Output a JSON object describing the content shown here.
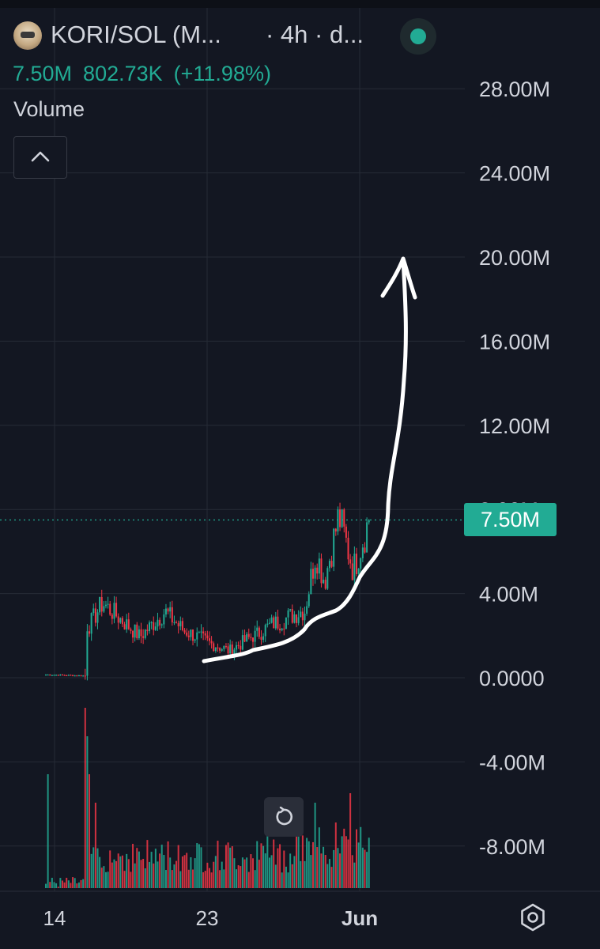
{
  "header": {
    "symbol_title": "KORI/SOL (M...",
    "interval": "· 4h · d...",
    "status_color": "#22ab94"
  },
  "price_line": {
    "last": "7.50M",
    "change": "802.73K",
    "change_pct": "(+11.98%)"
  },
  "indicator": {
    "name": "Volume"
  },
  "last_price_badge": "7.50M",
  "colors": {
    "background": "#131722",
    "up": "#22ab94",
    "down": "#f23645",
    "text": "#d1d4dc",
    "grid": "#262b36"
  },
  "icons": {
    "collapse": "chevron-up-icon",
    "reset": "reset-icon",
    "settings": "settings-icon"
  },
  "chart_data": {
    "type": "candlestick",
    "yaxis_ticks": [
      "28.00M",
      "24.00M",
      "20.00M",
      "16.00M",
      "12.00M",
      "8.00M",
      "4.00M",
      "0.0000",
      "-4.00M",
      "-8.00M"
    ],
    "ylim": [
      -10.4,
      28.8
    ],
    "xaxis_ticks": [
      "14",
      "23",
      "Jun"
    ],
    "grid": true,
    "last_price": 7.5,
    "annotation": "hand-drawn arrow pointing up",
    "price_segments": [
      {
        "from": 0,
        "to": 18,
        "start": 0.15,
        "end": 0.1
      },
      {
        "from": 19,
        "to": 20,
        "start": 0.1,
        "end": 2.5
      },
      {
        "from": 21,
        "to": 27,
        "start": 2.5,
        "end": 3.5
      },
      {
        "from": 28,
        "to": 45,
        "start": 3.5,
        "end": 2.0
      },
      {
        "from": 46,
        "to": 57,
        "start": 2.0,
        "end": 3.1
      },
      {
        "from": 58,
        "to": 67,
        "start": 3.1,
        "end": 2.2
      },
      {
        "from": 68,
        "to": 80,
        "start": 2.2,
        "end": 1.6
      },
      {
        "from": 81,
        "to": 88,
        "start": 1.6,
        "end": 1.3
      },
      {
        "from": 89,
        "to": 100,
        "start": 1.3,
        "end": 2.0
      },
      {
        "from": 101,
        "to": 110,
        "start": 2.0,
        "end": 2.6
      },
      {
        "from": 111,
        "to": 124,
        "start": 2.6,
        "end": 3.2
      },
      {
        "from": 125,
        "to": 130,
        "start": 3.2,
        "end": 5.8
      },
      {
        "from": 131,
        "to": 134,
        "start": 5.8,
        "end": 4.8
      },
      {
        "from": 135,
        "to": 141,
        "start": 4.8,
        "end": 7.5
      },
      {
        "from": 142,
        "to": 148,
        "start": 7.5,
        "end": 5.3
      },
      {
        "from": 149,
        "to": 156,
        "start": 5.3,
        "end": 7.5
      }
    ],
    "volume_spikes": [
      {
        "index": 1,
        "value": 0.6
      },
      {
        "index": 19,
        "value": 0.95
      },
      {
        "index": 20,
        "value": 0.8
      },
      {
        "index": 21,
        "value": 0.6
      },
      {
        "index": 24,
        "value": 0.45
      },
      {
        "index": 107,
        "value": 0.35
      },
      {
        "index": 130,
        "value": 0.45
      },
      {
        "index": 147,
        "value": 0.5
      }
    ]
  }
}
